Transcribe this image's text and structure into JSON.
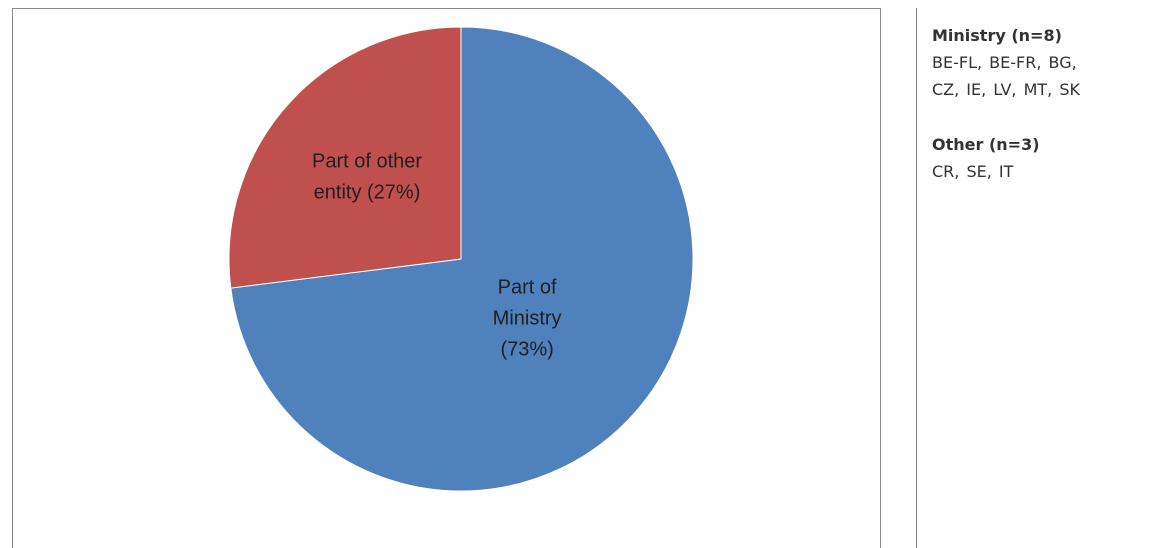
{
  "chart_data": {
    "type": "pie",
    "title": "",
    "slices": [
      {
        "label_lines": [
          "Part of",
          "Ministry",
          "(73%)"
        ],
        "value": 73,
        "color": "#4f81bd"
      },
      {
        "label_lines": [
          "Part of other",
          "entity (27%)"
        ],
        "value": 27,
        "color": "#c0504d"
      }
    ],
    "start_angle_deg": 0,
    "direction": "clockwise",
    "legend": "none"
  },
  "side_panel": {
    "groups": [
      {
        "title": "Ministry (n=8)",
        "lines": [
          "BE-FL,  BE-FR,  BG,",
          "CZ, IE, LV, MT, SK"
        ]
      },
      {
        "title": "Other (n=3)",
        "lines": [
          "CR, SE, IT"
        ]
      }
    ]
  }
}
